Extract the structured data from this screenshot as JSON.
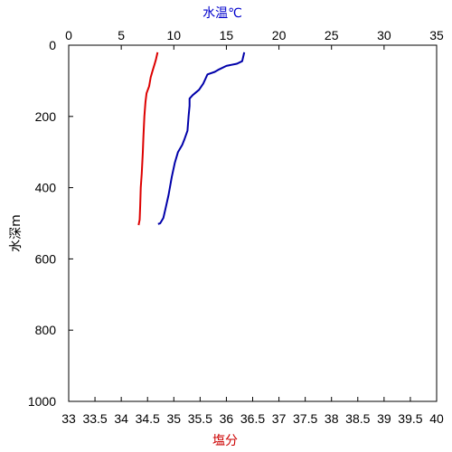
{
  "chart_data": {
    "type": "line",
    "top_axis": {
      "label": "水温℃",
      "label_color": "#0000cc",
      "min": 0,
      "max": 35,
      "ticks": [
        0,
        5,
        10,
        15,
        20,
        25,
        30,
        35
      ],
      "tick_labels": [
        "0",
        "5",
        "10",
        "15",
        "20",
        "25",
        "30",
        "35"
      ]
    },
    "bottom_axis": {
      "label": "塩分",
      "label_color": "#cc0000",
      "min": 33,
      "max": 40,
      "ticks": [
        33,
        33.5,
        34,
        34.5,
        35,
        35.5,
        36,
        36.5,
        37,
        37.5,
        38,
        38.5,
        39,
        39.5,
        40
      ],
      "tick_labels": [
        "33",
        "33.5",
        "34",
        "34.5",
        "35",
        "35.5",
        "36",
        "36.5",
        "37",
        "37.5",
        "38",
        "38.5",
        "39",
        "39.5",
        "40"
      ]
    },
    "y_axis": {
      "label": "水深m",
      "min": 0,
      "max": 1000,
      "inverted": true,
      "ticks": [
        0,
        200,
        400,
        600,
        800,
        1000
      ],
      "tick_labels": [
        "0",
        "200",
        "400",
        "600",
        "800",
        "1000"
      ]
    },
    "series": [
      {
        "axis": "top",
        "color": "#0000aa",
        "points": [
          [
            16.7,
            20
          ],
          [
            16.5,
            45
          ],
          [
            16.0,
            52
          ],
          [
            15.0,
            58
          ],
          [
            14.3,
            68
          ],
          [
            13.9,
            75
          ],
          [
            13.2,
            82
          ],
          [
            13.0,
            95
          ],
          [
            12.8,
            108
          ],
          [
            12.4,
            125
          ],
          [
            11.8,
            140
          ],
          [
            11.5,
            150
          ],
          [
            11.5,
            170
          ],
          [
            11.4,
            200
          ],
          [
            11.3,
            240
          ],
          [
            11.0,
            265
          ],
          [
            10.8,
            280
          ],
          [
            10.4,
            300
          ],
          [
            10.1,
            330
          ],
          [
            9.8,
            370
          ],
          [
            9.5,
            420
          ],
          [
            9.2,
            460
          ],
          [
            9.0,
            485
          ],
          [
            8.7,
            500
          ],
          [
            8.5,
            502
          ]
        ]
      },
      {
        "axis": "bottom",
        "color": "#dd0000",
        "points": [
          [
            34.69,
            20
          ],
          [
            34.66,
            40
          ],
          [
            34.63,
            55
          ],
          [
            34.6,
            70
          ],
          [
            34.56,
            90
          ],
          [
            34.53,
            115
          ],
          [
            34.48,
            135
          ],
          [
            34.46,
            160
          ],
          [
            34.44,
            200
          ],
          [
            34.42,
            260
          ],
          [
            34.41,
            300
          ],
          [
            34.39,
            360
          ],
          [
            34.37,
            400
          ],
          [
            34.36,
            450
          ],
          [
            34.35,
            490
          ],
          [
            34.33,
            505
          ]
        ]
      }
    ]
  }
}
